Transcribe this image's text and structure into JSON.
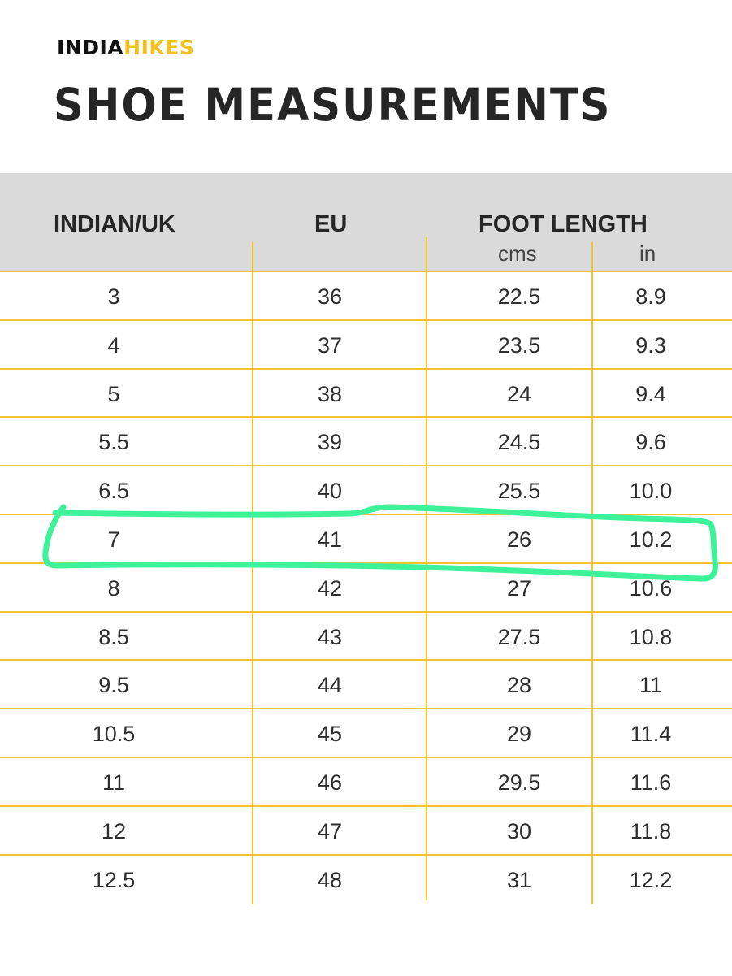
{
  "brand": {
    "part1": "INDIA",
    "part2": "HIKES"
  },
  "title": "SHOE MEASUREMENTS",
  "table": {
    "headers": {
      "indian_uk": "INDIAN/UK",
      "eu": "EU",
      "foot_length": "FOOT LENGTH",
      "cms": "cms",
      "in": "in"
    },
    "rows": [
      {
        "indian_uk": "3",
        "eu": "36",
        "cms": "22.5",
        "in": "8.9"
      },
      {
        "indian_uk": "4",
        "eu": "37",
        "cms": "23.5",
        "in": "9.3"
      },
      {
        "indian_uk": "5",
        "eu": "38",
        "cms": "24",
        "in": "9.4"
      },
      {
        "indian_uk": "5.5",
        "eu": "39",
        "cms": "24.5",
        "in": "9.6"
      },
      {
        "indian_uk": "6.5",
        "eu": "40",
        "cms": "25.5",
        "in": "10.0"
      },
      {
        "indian_uk": "7",
        "eu": "41",
        "cms": "26",
        "in": "10.2"
      },
      {
        "indian_uk": "8",
        "eu": "42",
        "cms": "27",
        "in": "10.6"
      },
      {
        "indian_uk": "8.5",
        "eu": "43",
        "cms": "27.5",
        "in": "10.8"
      },
      {
        "indian_uk": "9.5",
        "eu": "44",
        "cms": "28",
        "in": "11"
      },
      {
        "indian_uk": "10.5",
        "eu": "45",
        "cms": "29",
        "in": "11.4"
      },
      {
        "indian_uk": "11",
        "eu": "46",
        "cms": "29.5",
        "in": "11.6"
      },
      {
        "indian_uk": "12",
        "eu": "47",
        "cms": "30",
        "in": "11.8"
      },
      {
        "indian_uk": "12.5",
        "eu": "48",
        "cms": "31",
        "in": "12.2"
      }
    ]
  },
  "colors": {
    "brand_accent": "#f2c11b",
    "grid_line": "#f4c430",
    "header_band": "#dadada",
    "highlight_stroke": "#3ef29a"
  },
  "highlighted_row": "7"
}
